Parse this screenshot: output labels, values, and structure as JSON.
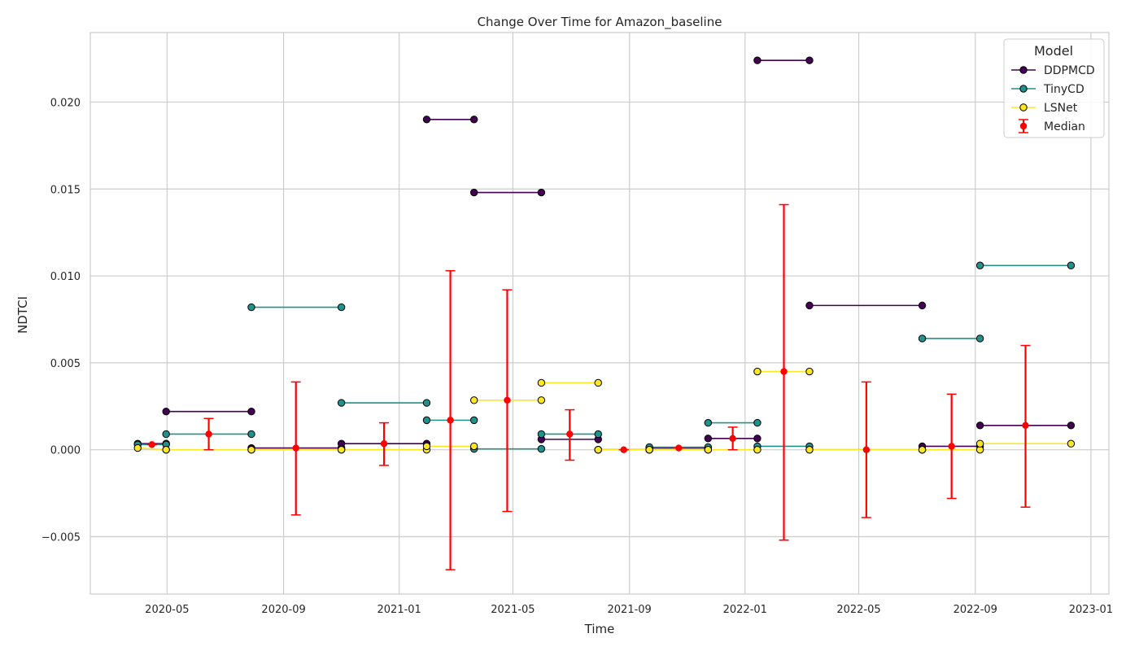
{
  "chart_data": {
    "type": "line",
    "title": "Change Over Time for Amazon_baseline",
    "xlabel": "Time",
    "ylabel": "NDTCI",
    "xlim": [
      "2020-02-10",
      "2023-01-20"
    ],
    "ylim": [
      -0.0083,
      0.024
    ],
    "x_ticks": [
      "2020-05",
      "2020-09",
      "2021-01",
      "2021-05",
      "2021-09",
      "2022-01",
      "2022-05",
      "2022-09",
      "2023-01"
    ],
    "y_ticks": [
      -0.005,
      0.0,
      0.005,
      0.01,
      0.015,
      0.02
    ],
    "y_tick_labels": [
      "−0.005",
      "0.000",
      "0.005",
      "0.010",
      "0.015",
      "0.020"
    ],
    "grid": true,
    "legend": {
      "title": "Model",
      "position": "top-right",
      "entries": [
        "DDPMCD",
        "TinyCD",
        "LSNet",
        "Median"
      ]
    },
    "series": [
      {
        "name": "DDPMCD",
        "color": "#440154",
        "segments": [
          [
            [
              "2020-03-31",
              0.00035
            ],
            [
              "2020-04-30",
              0.00035
            ]
          ],
          [
            [
              "2020-04-30",
              0.0022
            ],
            [
              "2020-07-29",
              0.0022
            ]
          ],
          [
            [
              "2020-07-29",
              0.0001
            ],
            [
              "2020-11-01",
              0.0001
            ]
          ],
          [
            [
              "2020-11-01",
              0.00035
            ],
            [
              "2021-01-30",
              0.00035
            ]
          ],
          [
            [
              "2021-01-30",
              0.019
            ],
            [
              "2021-03-21",
              0.019
            ]
          ],
          [
            [
              "2021-03-21",
              0.0148
            ],
            [
              "2021-05-31",
              0.0148
            ]
          ],
          [
            [
              "2021-05-31",
              0.0006
            ],
            [
              "2021-07-30",
              0.0006
            ]
          ],
          [
            [
              "2021-07-30",
              0.0
            ],
            [
              "2021-09-22",
              0.0
            ]
          ],
          [
            [
              "2021-09-22",
              0.0001
            ],
            [
              "2021-11-23",
              0.0001
            ]
          ],
          [
            [
              "2021-11-23",
              0.00065
            ],
            [
              "2022-01-14",
              0.00065
            ]
          ],
          [
            [
              "2022-01-14",
              0.0224
            ],
            [
              "2022-03-10",
              0.0224
            ]
          ],
          [
            [
              "2022-03-10",
              0.0083
            ],
            [
              "2022-07-07",
              0.0083
            ]
          ],
          [
            [
              "2022-07-07",
              0.0002
            ],
            [
              "2022-09-06",
              0.0002
            ]
          ],
          [
            [
              "2022-09-06",
              0.0014
            ],
            [
              "2022-12-11",
              0.0014
            ]
          ]
        ]
      },
      {
        "name": "TinyCD",
        "color": "#21918c",
        "segments": [
          [
            [
              "2020-03-31",
              0.0003
            ],
            [
              "2020-04-30",
              0.0003
            ]
          ],
          [
            [
              "2020-04-30",
              0.0009
            ],
            [
              "2020-07-29",
              0.0009
            ]
          ],
          [
            [
              "2020-07-29",
              0.0082
            ],
            [
              "2020-11-01",
              0.0082
            ]
          ],
          [
            [
              "2020-11-01",
              0.0027
            ],
            [
              "2021-01-30",
              0.0027
            ]
          ],
          [
            [
              "2021-01-30",
              0.0017
            ],
            [
              "2021-03-21",
              0.0017
            ]
          ],
          [
            [
              "2021-03-21",
              5e-05
            ],
            [
              "2021-05-31",
              5e-05
            ]
          ],
          [
            [
              "2021-05-31",
              0.0009
            ],
            [
              "2021-07-30",
              0.0009
            ]
          ],
          [
            [
              "2021-07-30",
              0.0
            ],
            [
              "2021-09-22",
              0.0
            ]
          ],
          [
            [
              "2021-09-22",
              0.00015
            ],
            [
              "2021-11-23",
              0.00015
            ]
          ],
          [
            [
              "2021-11-23",
              0.00155
            ],
            [
              "2022-01-14",
              0.00155
            ]
          ],
          [
            [
              "2022-01-14",
              0.0002
            ],
            [
              "2022-03-10",
              0.0002
            ]
          ],
          [
            [
              "2022-03-10",
              0.0
            ],
            [
              "2022-07-07",
              0.0
            ]
          ],
          [
            [
              "2022-07-07",
              0.0064
            ],
            [
              "2022-09-06",
              0.0064
            ]
          ],
          [
            [
              "2022-09-06",
              0.0106
            ],
            [
              "2022-12-11",
              0.0106
            ]
          ]
        ]
      },
      {
        "name": "LSNet",
        "color": "#fde725",
        "segments": [
          [
            [
              "2020-03-31",
              0.0001
            ],
            [
              "2020-04-30",
              0.0
            ]
          ],
          [
            [
              "2020-04-30",
              0.0
            ],
            [
              "2020-07-29",
              0.0
            ]
          ],
          [
            [
              "2020-07-29",
              0.0
            ],
            [
              "2020-11-01",
              0.0
            ]
          ],
          [
            [
              "2020-11-01",
              0.0
            ],
            [
              "2021-01-30",
              0.0
            ]
          ],
          [
            [
              "2021-01-30",
              0.0002
            ],
            [
              "2021-03-21",
              0.0002
            ]
          ],
          [
            [
              "2021-03-21",
              0.00285
            ],
            [
              "2021-05-31",
              0.00285
            ]
          ],
          [
            [
              "2021-05-31",
              0.00385
            ],
            [
              "2021-07-30",
              0.00385
            ]
          ],
          [
            [
              "2021-07-30",
              0.0
            ],
            [
              "2021-09-22",
              0.0
            ]
          ],
          [
            [
              "2021-09-22",
              0.0
            ],
            [
              "2021-11-23",
              0.0
            ]
          ],
          [
            [
              "2021-11-23",
              0.0
            ],
            [
              "2022-01-14",
              0.0
            ]
          ],
          [
            [
              "2022-01-14",
              0.0045
            ],
            [
              "2022-03-10",
              0.0045
            ]
          ],
          [
            [
              "2022-03-10",
              0.0
            ],
            [
              "2022-07-07",
              0.0
            ]
          ],
          [
            [
              "2022-07-07",
              0.0
            ],
            [
              "2022-09-06",
              0.0
            ]
          ],
          [
            [
              "2022-09-06",
              0.00035
            ],
            [
              "2022-12-11",
              0.00035
            ]
          ]
        ]
      }
    ],
    "median": {
      "name": "Median",
      "color": "#ff0000",
      "points": [
        {
          "x": "2020-04-15",
          "y": 0.0003,
          "low": 0.0003,
          "high": 0.0003
        },
        {
          "x": "2020-06-14",
          "y": 0.0009,
          "low": 0.0,
          "high": 0.0018
        },
        {
          "x": "2020-09-14",
          "y": 0.0001,
          "low": -0.00375,
          "high": 0.0039
        },
        {
          "x": "2020-12-16",
          "y": 0.00035,
          "low": -0.0009,
          "high": 0.00155
        },
        {
          "x": "2021-02-24",
          "y": 0.0017,
          "low": -0.0069,
          "high": 0.0103
        },
        {
          "x": "2021-04-25",
          "y": 0.00285,
          "low": -0.00355,
          "high": 0.0092
        },
        {
          "x": "2021-06-30",
          "y": 0.0009,
          "low": -0.0006,
          "high": 0.0023
        },
        {
          "x": "2021-08-26",
          "y": 0.0,
          "low": 0.0,
          "high": 0.0
        },
        {
          "x": "2021-10-23",
          "y": 0.0001,
          "low": 0.0001,
          "high": 0.0001
        },
        {
          "x": "2021-12-19",
          "y": 0.00065,
          "low": 0.0,
          "high": 0.0013
        },
        {
          "x": "2022-02-11",
          "y": 0.0045,
          "low": -0.0052,
          "high": 0.0141
        },
        {
          "x": "2022-05-09",
          "y": 0.0,
          "low": -0.0039,
          "high": 0.0039
        },
        {
          "x": "2022-08-07",
          "y": 0.0002,
          "low": -0.0028,
          "high": 0.0032
        },
        {
          "x": "2022-10-24",
          "y": 0.0014,
          "low": -0.0033,
          "high": 0.006
        }
      ]
    }
  }
}
